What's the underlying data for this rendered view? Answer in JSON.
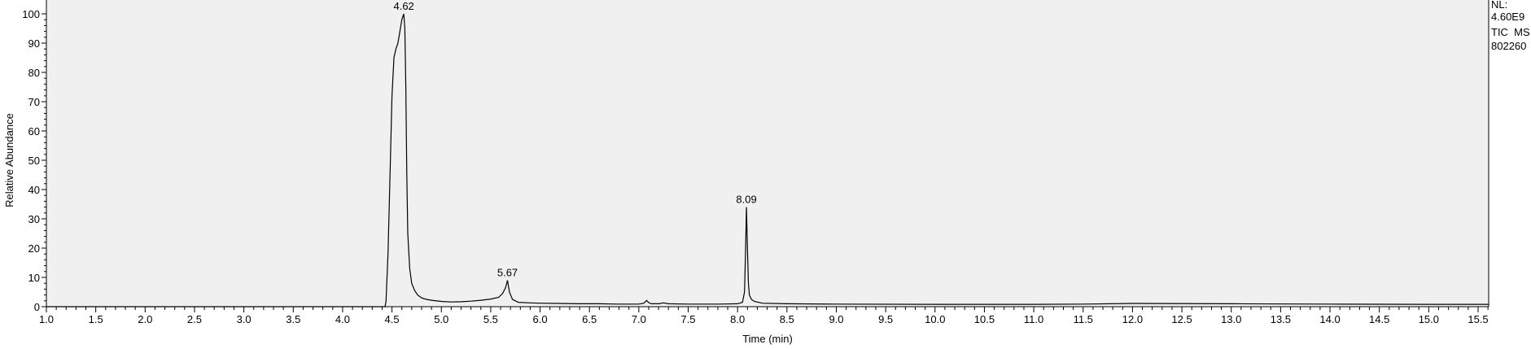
{
  "chart_data": {
    "type": "line",
    "title": "",
    "xlabel": "Time (min)",
    "ylabel": "Relative Abundance",
    "xlim": [
      1.0,
      15.7
    ],
    "ylim": [
      0,
      102
    ],
    "x_ticks": [
      "1.0",
      "1.5",
      "2.0",
      "2.5",
      "3.0",
      "3.5",
      "4.0",
      "4.5",
      "5.0",
      "5.5",
      "6.0",
      "6.5",
      "7.0",
      "7.5",
      "8.0",
      "8.5",
      "9.0",
      "9.5",
      "10.0",
      "10.5",
      "11.0",
      "11.5",
      "12.0",
      "12.5",
      "13.0",
      "13.5",
      "14.0",
      "14.5",
      "15.0",
      "15.5"
    ],
    "y_ticks": [
      "0",
      "10",
      "20",
      "30",
      "40",
      "50",
      "60",
      "70",
      "80",
      "90",
      "100"
    ],
    "grid": false,
    "info": [
      "NL:",
      "4.60E9",
      "TIC  MS",
      "802260"
    ],
    "peak_labels": [
      {
        "text": "4.62",
        "x": 4.62,
        "y": 100
      },
      {
        "text": "5.67",
        "x": 5.67,
        "y": 9
      },
      {
        "text": "8.09",
        "x": 8.09,
        "y": 34
      }
    ],
    "series": [
      {
        "x": [
          1.0,
          4.4,
          4.43,
          4.44,
          4.46,
          4.48,
          4.5,
          4.52,
          4.54,
          4.56,
          4.58,
          4.6,
          4.62,
          4.63,
          4.64,
          4.65,
          4.66,
          4.68,
          4.7,
          4.73,
          4.76,
          4.8,
          4.85,
          4.9,
          5.0,
          5.1,
          5.2,
          5.3,
          5.4,
          5.5,
          5.58,
          5.62,
          5.65,
          5.67,
          5.69,
          5.72,
          5.78,
          5.9,
          6.0,
          6.2,
          6.4,
          6.6,
          6.8,
          7.0,
          7.05,
          7.08,
          7.1,
          7.13,
          7.2,
          7.25,
          7.3,
          7.5,
          7.8,
          8.0,
          8.05,
          8.07,
          8.08,
          8.09,
          8.1,
          8.11,
          8.12,
          8.14,
          8.17,
          8.25,
          8.5,
          9.0,
          10.0,
          11.0,
          11.5,
          12.0,
          13.0,
          14.0,
          15.0,
          15.7
        ],
        "y": [
          0,
          0,
          0,
          2,
          18,
          45,
          72,
          85,
          88,
          90,
          94,
          98,
          100,
          95,
          75,
          45,
          25,
          13,
          8,
          5.5,
          4,
          3,
          2.5,
          2.2,
          1.8,
          1.6,
          1.7,
          1.9,
          2.2,
          2.6,
          3.2,
          4.5,
          6.5,
          9,
          5,
          2.5,
          1.5,
          1.3,
          1.2,
          1.1,
          1.0,
          1.0,
          0.9,
          0.9,
          1.2,
          2.1,
          1.4,
          1.0,
          1.0,
          1.3,
          1.0,
          0.9,
          0.9,
          1.0,
          1.5,
          5,
          18,
          34,
          20,
          8,
          4,
          2.5,
          1.8,
          1.2,
          1.0,
          0.9,
          0.8,
          0.8,
          0.9,
          1.1,
          1.0,
          0.9,
          0.8,
          0.8
        ]
      }
    ]
  }
}
